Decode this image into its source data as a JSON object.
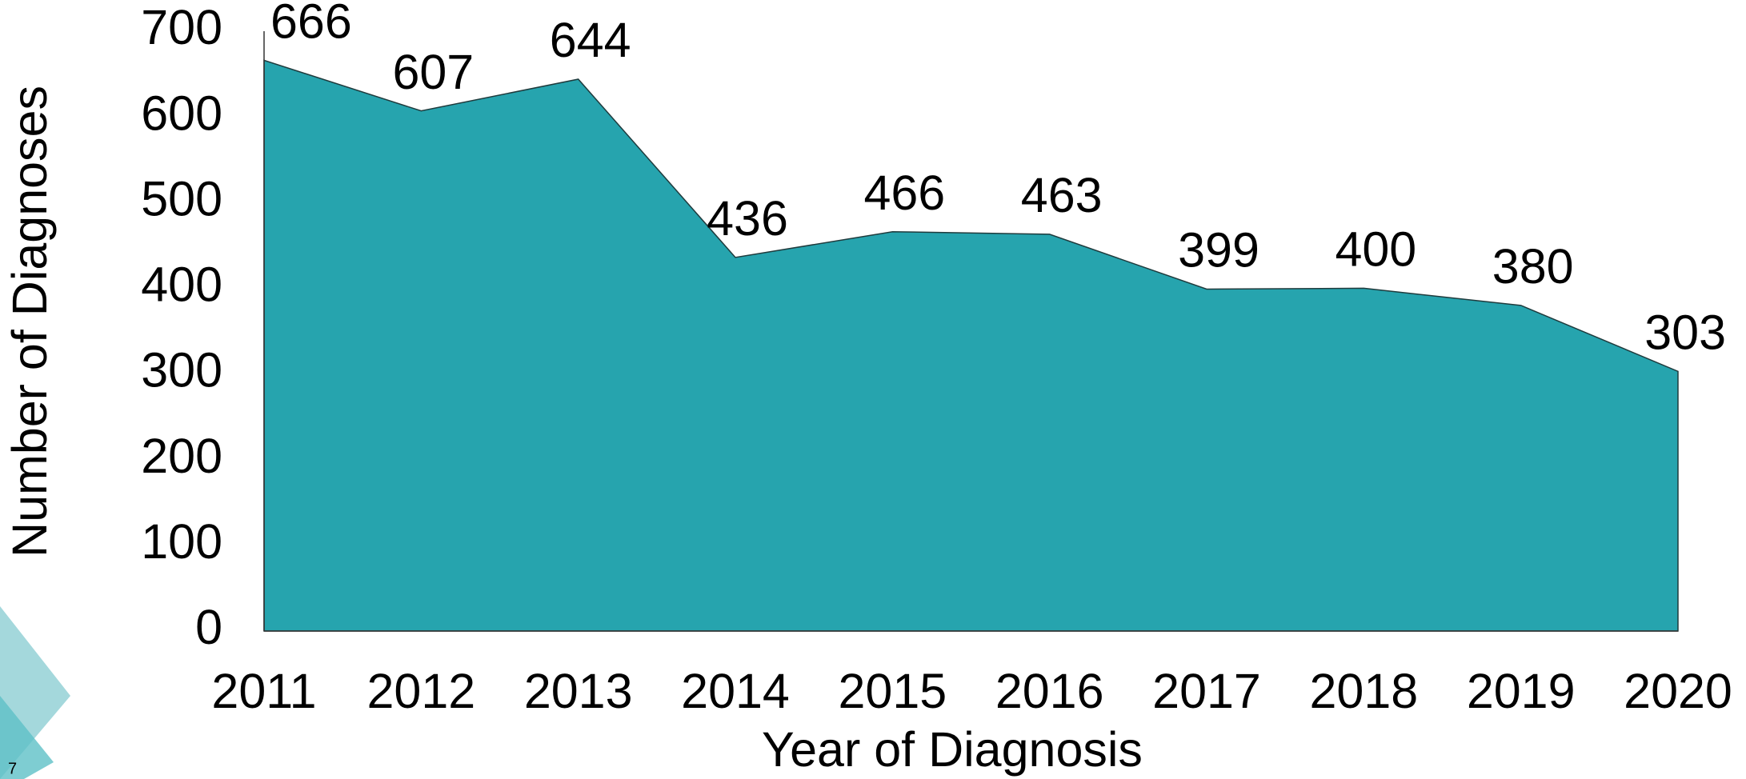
{
  "chart_data": {
    "type": "area",
    "categories": [
      "2011",
      "2012",
      "2013",
      "2014",
      "2015",
      "2016",
      "2017",
      "2018",
      "2019",
      "2020"
    ],
    "values": [
      666,
      607,
      644,
      436,
      466,
      463,
      399,
      400,
      380,
      303
    ],
    "color": "#26a4ae",
    "xlabel": "Year of Diagnosis",
    "ylabel": "Number of Diagnoses",
    "ylim": [
      0,
      700
    ],
    "yticks": [
      0,
      100,
      200,
      300,
      400,
      500,
      600,
      700
    ],
    "grid": false
  },
  "slide_number": "7"
}
